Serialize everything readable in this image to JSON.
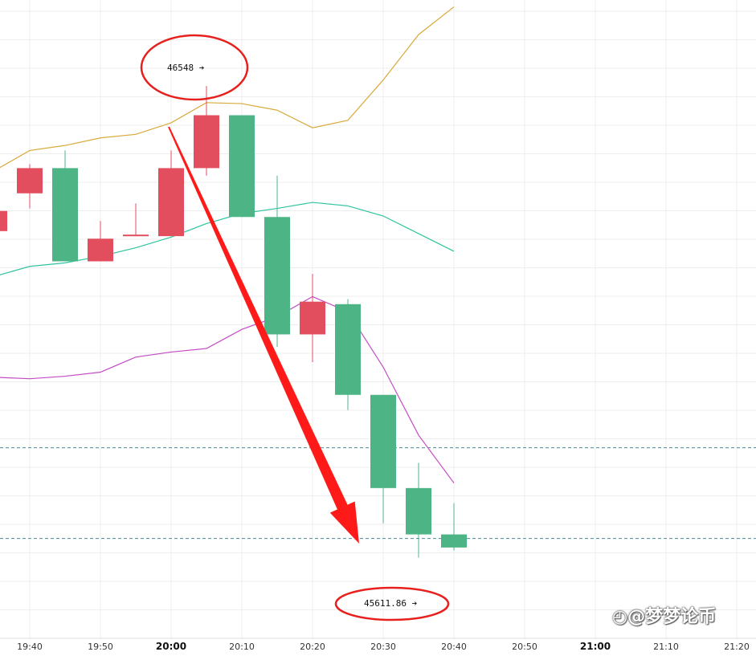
{
  "chart_data": {
    "type": "candlestick",
    "x_labels": [
      "19:40",
      "19:50",
      "20:00",
      "20:10",
      "20:20",
      "20:30",
      "20:40",
      "20:50",
      "21:00",
      "21:10",
      "21:20"
    ],
    "bold_labels": [
      "20:00",
      "21:00"
    ],
    "candles": [
      {
        "t": "19:35",
        "open": 46300,
        "high": 46330,
        "low": 46250,
        "close": 46260,
        "dir": "down"
      },
      {
        "t": "19:40",
        "open": 46385,
        "high": 46393,
        "low": 46305,
        "close": 46335,
        "dir": "down"
      },
      {
        "t": "19:45",
        "open": 46200,
        "high": 46420,
        "low": 46200,
        "close": 46385,
        "dir": "up"
      },
      {
        "t": "19:50",
        "open": 46200,
        "high": 46280,
        "low": 46200,
        "close": 46245,
        "dir": "down"
      },
      {
        "t": "19:55",
        "open": 46250,
        "high": 46315,
        "low": 46250,
        "close": 46253,
        "dir": "down"
      },
      {
        "t": "20:00",
        "open": 46250,
        "high": 46420,
        "low": 46250,
        "close": 46385,
        "dir": "down"
      },
      {
        "t": "20:05",
        "open": 46385,
        "high": 46548,
        "low": 46370,
        "close": 46490,
        "dir": "down"
      },
      {
        "t": "20:10",
        "open": 46490,
        "high": 46490,
        "low": 46288,
        "close": 46288,
        "dir": "up"
      },
      {
        "t": "20:15",
        "open": 46288,
        "high": 46370,
        "low": 46030,
        "close": 46055,
        "dir": "up"
      },
      {
        "t": "20:20",
        "open": 46120,
        "high": 46175,
        "low": 46000,
        "close": 46055,
        "dir": "down"
      },
      {
        "t": "20:25",
        "open": 46115,
        "high": 46125,
        "low": 45905,
        "close": 45935,
        "dir": "up"
      },
      {
        "t": "20:30",
        "open": 45935,
        "high": 45935,
        "low": 45680,
        "close": 45750,
        "dir": "up"
      },
      {
        "t": "20:35",
        "open": 45750,
        "high": 45800,
        "low": 45611.86,
        "close": 45658,
        "dir": "up"
      },
      {
        "t": "20:40",
        "open": 45658,
        "high": 45720,
        "low": 45626,
        "close": 45632,
        "dir": "up"
      }
    ],
    "bands": {
      "upper_color": "#d9a93a",
      "middle_color": "#2ec4a0",
      "lower_color": "#c44bc4",
      "times": [
        "19:35",
        "19:40",
        "19:45",
        "19:50",
        "19:55",
        "20:00",
        "20:05",
        "20:10",
        "20:15",
        "20:20",
        "20:25",
        "20:30",
        "20:35",
        "20:40"
      ],
      "upper": [
        46380,
        46420,
        46430,
        46445,
        46452,
        46475,
        46515,
        46513,
        46500,
        46465,
        46480,
        46560,
        46650,
        46705
      ],
      "middle": [
        46170,
        46190,
        46197,
        46210,
        46227,
        46248,
        46275,
        46295,
        46305,
        46317,
        46310,
        46290,
        46255,
        46220
      ],
      "lower": [
        45970,
        45967,
        45972,
        45980,
        46010,
        46020,
        46027,
        46065,
        46090,
        46130,
        46100,
        45990,
        45855,
        45760
      ]
    },
    "h_lines": [
      45830,
      45650
    ],
    "annotations": [
      {
        "text": "46548 ➔",
        "time": "20:05",
        "price": 46548
      },
      {
        "text": "45611.86 ➔",
        "time": "20:35",
        "price": 45611.86
      }
    ],
    "colors": {
      "up": "#4db585",
      "down": "#e24e5e",
      "arrow": "#ff1a1a",
      "ellipse": "#e8201d",
      "dash": "#4a8a9a"
    }
  },
  "watermark": "@梦梦论币"
}
